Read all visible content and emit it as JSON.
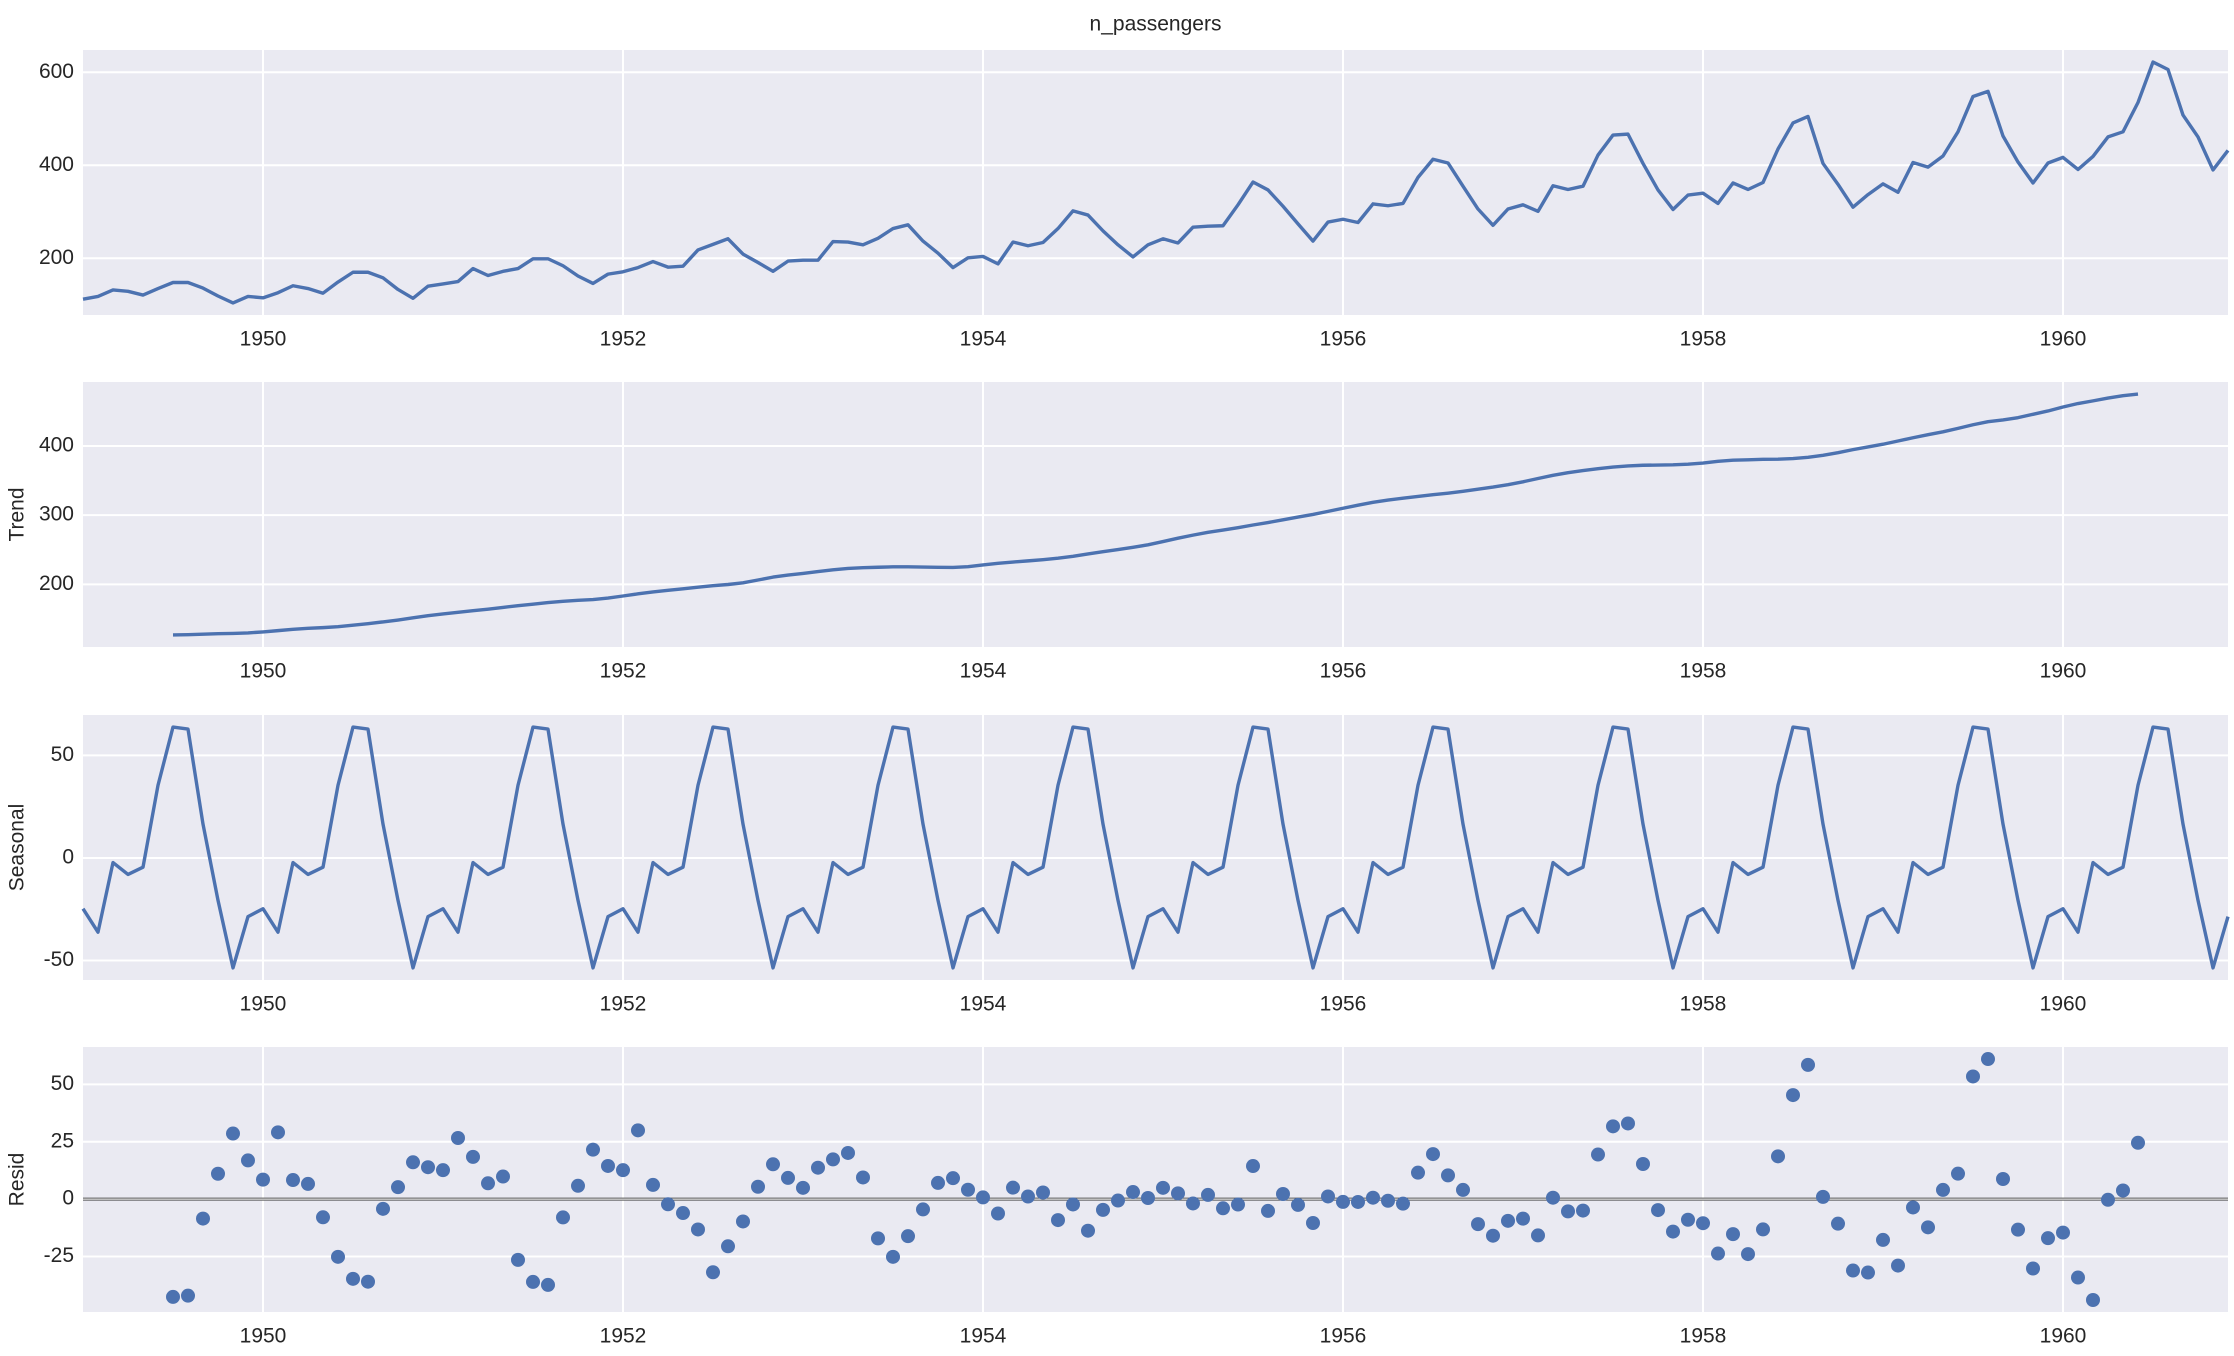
{
  "chart_data": {
    "type": "decomposition",
    "x": [
      "1949-01",
      "1949-02",
      "1949-03",
      "1949-04",
      "1949-05",
      "1949-06",
      "1949-07",
      "1949-08",
      "1949-09",
      "1949-10",
      "1949-11",
      "1949-12",
      "1950-01",
      "1950-02",
      "1950-03",
      "1950-04",
      "1950-05",
      "1950-06",
      "1950-07",
      "1950-08",
      "1950-09",
      "1950-10",
      "1950-11",
      "1950-12",
      "1951-01",
      "1951-02",
      "1951-03",
      "1951-04",
      "1951-05",
      "1951-06",
      "1951-07",
      "1951-08",
      "1951-09",
      "1951-10",
      "1951-11",
      "1951-12",
      "1952-01",
      "1952-02",
      "1952-03",
      "1952-04",
      "1952-05",
      "1952-06",
      "1952-07",
      "1952-08",
      "1952-09",
      "1952-10",
      "1952-11",
      "1952-12",
      "1953-01",
      "1953-02",
      "1953-03",
      "1953-04",
      "1953-05",
      "1953-06",
      "1953-07",
      "1953-08",
      "1953-09",
      "1953-10",
      "1953-11",
      "1953-12",
      "1954-01",
      "1954-02",
      "1954-03",
      "1954-04",
      "1954-05",
      "1954-06",
      "1954-07",
      "1954-08",
      "1954-09",
      "1954-10",
      "1954-11",
      "1954-12",
      "1955-01",
      "1955-02",
      "1955-03",
      "1955-04",
      "1955-05",
      "1955-06",
      "1955-07",
      "1955-08",
      "1955-09",
      "1955-10",
      "1955-11",
      "1955-12",
      "1956-01",
      "1956-02",
      "1956-03",
      "1956-04",
      "1956-05",
      "1956-06",
      "1956-07",
      "1956-08",
      "1956-09",
      "1956-10",
      "1956-11",
      "1956-12",
      "1957-01",
      "1957-02",
      "1957-03",
      "1957-04",
      "1957-05",
      "1957-06",
      "1957-07",
      "1957-08",
      "1957-09",
      "1957-10",
      "1957-11",
      "1957-12",
      "1958-01",
      "1958-02",
      "1958-03",
      "1958-04",
      "1958-05",
      "1958-06",
      "1958-07",
      "1958-08",
      "1958-09",
      "1958-10",
      "1958-11",
      "1958-12",
      "1959-01",
      "1959-02",
      "1959-03",
      "1959-04",
      "1959-05",
      "1959-06",
      "1959-07",
      "1959-08",
      "1959-09",
      "1959-10",
      "1959-11",
      "1959-12",
      "1960-01",
      "1960-02",
      "1960-03",
      "1960-04",
      "1960-05",
      "1960-06",
      "1960-07",
      "1960-08",
      "1960-09",
      "1960-10",
      "1960-11",
      "1960-12"
    ],
    "xlim": [
      "1949-01",
      "1960-12"
    ],
    "xticks": [
      1950,
      1952,
      1954,
      1956,
      1958,
      1960
    ],
    "grid": true,
    "panels": [
      {
        "type": "line",
        "title": "n_passengers",
        "color": "#4c72b0",
        "ylim": [
          78.1,
          647.9
        ],
        "yticks": [
          200,
          400,
          600
        ],
        "values": [
          112,
          118,
          132,
          129,
          121,
          135,
          148,
          148,
          136,
          119,
          104,
          118,
          115,
          126,
          141,
          135,
          125,
          149,
          170,
          170,
          158,
          133,
          114,
          140,
          145,
          150,
          178,
          163,
          172,
          178,
          199,
          199,
          184,
          162,
          146,
          166,
          171,
          180,
          193,
          181,
          183,
          218,
          230,
          242,
          209,
          191,
          172,
          194,
          196,
          196,
          236,
          235,
          229,
          243,
          264,
          272,
          237,
          211,
          180,
          201,
          204,
          188,
          235,
          227,
          234,
          264,
          302,
          293,
          259,
          229,
          203,
          229,
          242,
          233,
          267,
          269,
          270,
          315,
          364,
          347,
          312,
          274,
          237,
          278,
          284,
          277,
          317,
          313,
          318,
          374,
          413,
          405,
          355,
          306,
          271,
          306,
          315,
          301,
          356,
          348,
          355,
          422,
          465,
          467,
          404,
          347,
          305,
          336,
          340,
          318,
          362,
          348,
          363,
          435,
          491,
          505,
          404,
          359,
          310,
          337,
          360,
          342,
          406,
          396,
          420,
          472,
          548,
          559,
          463,
          407,
          362,
          405,
          417,
          391,
          419,
          461,
          472,
          535,
          622,
          606,
          508,
          461,
          390,
          432
        ]
      },
      {
        "type": "line",
        "ylabel": "Trend",
        "color": "#4c72b0",
        "ylim": [
          109.4,
          492.5
        ],
        "yticks": [
          200,
          300,
          400
        ],
        "values": [
          null,
          null,
          null,
          null,
          null,
          null,
          126.79,
          127.25,
          127.96,
          128.58,
          129.0,
          129.75,
          131.25,
          133.08,
          134.92,
          136.42,
          137.42,
          138.75,
          140.92,
          143.17,
          145.71,
          148.42,
          151.54,
          154.71,
          157.13,
          159.54,
          161.83,
          164.13,
          166.67,
          169.08,
          171.25,
          173.58,
          175.46,
          176.83,
          178.04,
          180.17,
          183.13,
          186.21,
          189.04,
          191.29,
          193.58,
          195.83,
          198.04,
          199.75,
          202.21,
          206.25,
          210.42,
          213.38,
          215.83,
          218.5,
          220.92,
          222.92,
          224.08,
          224.71,
          225.33,
          225.33,
          224.96,
          224.58,
          224.46,
          225.54,
          228.0,
          230.46,
          232.25,
          233.92,
          235.63,
          237.75,
          240.5,
          243.96,
          247.17,
          250.25,
          253.5,
          257.13,
          261.83,
          266.67,
          271.13,
          275.21,
          278.5,
          281.96,
          285.75,
          289.33,
          293.25,
          297.17,
          301.0,
          305.46,
          309.96,
          314.42,
          318.63,
          321.75,
          324.5,
          327.08,
          329.54,
          331.83,
          334.46,
          337.54,
          340.54,
          344.08,
          348.25,
          353.0,
          357.63,
          361.38,
          364.5,
          367.17,
          369.46,
          371.21,
          372.17,
          372.42,
          372.75,
          373.63,
          375.25,
          377.92,
          379.5,
          380.0,
          380.71,
          380.96,
          381.83,
          383.67,
          386.5,
          390.33,
          394.71,
          398.63,
          402.54,
          407.17,
          411.88,
          416.33,
          420.5,
          425.5,
          430.71,
          435.13,
          437.71,
          440.96,
          445.83,
          450.63,
          456.33,
          461.38,
          465.21,
          469.33,
          472.75,
          475.04,
          null,
          null,
          null,
          null,
          null,
          null
        ]
      },
      {
        "type": "line",
        "ylabel": "Seasonal",
        "color": "#4c72b0",
        "ylim": [
          -59.5,
          69.7
        ],
        "yticks": [
          -50,
          0,
          50
        ],
        "values": [
          -24.75,
          -36.19,
          -2.24,
          -8.04,
          -4.51,
          35.4,
          63.83,
          62.82,
          16.52,
          -20.64,
          -53.59,
          -28.62,
          -24.75,
          -36.19,
          -2.24,
          -8.04,
          -4.51,
          35.4,
          63.83,
          62.82,
          16.52,
          -20.64,
          -53.59,
          -28.62,
          -24.75,
          -36.19,
          -2.24,
          -8.04,
          -4.51,
          35.4,
          63.83,
          62.82,
          16.52,
          -20.64,
          -53.59,
          -28.62,
          -24.75,
          -36.19,
          -2.24,
          -8.04,
          -4.51,
          35.4,
          63.83,
          62.82,
          16.52,
          -20.64,
          -53.59,
          -28.62,
          -24.75,
          -36.19,
          -2.24,
          -8.04,
          -4.51,
          35.4,
          63.83,
          62.82,
          16.52,
          -20.64,
          -53.59,
          -28.62,
          -24.75,
          -36.19,
          -2.24,
          -8.04,
          -4.51,
          35.4,
          63.83,
          62.82,
          16.52,
          -20.64,
          -53.59,
          -28.62,
          -24.75,
          -36.19,
          -2.24,
          -8.04,
          -4.51,
          35.4,
          63.83,
          62.82,
          16.52,
          -20.64,
          -53.59,
          -28.62,
          -24.75,
          -36.19,
          -2.24,
          -8.04,
          -4.51,
          35.4,
          63.83,
          62.82,
          16.52,
          -20.64,
          -53.59,
          -28.62,
          -24.75,
          -36.19,
          -2.24,
          -8.04,
          -4.51,
          35.4,
          63.83,
          62.82,
          16.52,
          -20.64,
          -53.59,
          -28.62,
          -24.75,
          -36.19,
          -2.24,
          -8.04,
          -4.51,
          35.4,
          63.83,
          62.82,
          16.52,
          -20.64,
          -53.59,
          -28.62,
          -24.75,
          -36.19,
          -2.24,
          -8.04,
          -4.51,
          35.4,
          63.83,
          62.82,
          16.52,
          -20.64,
          -53.59,
          -28.62,
          -24.75,
          -36.19,
          -2.24,
          -8.04,
          -4.51,
          35.4,
          63.83,
          62.82,
          16.52,
          -20.64,
          -53.59,
          -28.62
        ]
      },
      {
        "type": "scatter",
        "ylabel": "Resid",
        "color": "#4c72b0",
        "ylim": [
          -49.2,
          66.3
        ],
        "yticks": [
          -25,
          0,
          25,
          50
        ],
        "hline": 0,
        "values": [
          null,
          null,
          null,
          null,
          null,
          null,
          -42.62,
          -42.07,
          -8.48,
          11.06,
          28.59,
          16.87,
          8.5,
          29.11,
          8.32,
          6.62,
          -7.91,
          -25.15,
          -34.75,
          -35.99,
          -4.23,
          5.22,
          16.05,
          13.91,
          12.62,
          26.65,
          18.41,
          6.91,
          9.84,
          -26.48,
          -36.08,
          -37.4,
          -7.98,
          5.81,
          21.55,
          14.45,
          12.62,
          29.98,
          6.2,
          -2.25,
          -6.07,
          -13.23,
          -31.87,
          -20.57,
          -9.73,
          5.39,
          15.17,
          9.24,
          4.92,
          13.69,
          17.32,
          20.12,
          9.43,
          -17.11,
          -25.16,
          -16.15,
          -4.48,
          7.06,
          9.13,
          4.08,
          0.75,
          -6.27,
          4.99,
          1.12,
          2.88,
          -9.15,
          -2.33,
          -13.78,
          -4.69,
          -0.61,
          3.09,
          0.49,
          4.92,
          2.52,
          -1.89,
          1.83,
          -3.99,
          -2.36,
          14.42,
          -5.15,
          2.23,
          -2.53,
          -10.41,
          1.16,
          -1.21,
          -1.23,
          0.61,
          -0.71,
          -1.99,
          11.52,
          19.63,
          10.35,
          4.02,
          -10.9,
          -15.95,
          -9.46,
          -8.5,
          -15.81,
          0.61,
          -5.34,
          -4.99,
          19.43,
          31.71,
          32.97,
          15.31,
          -4.78,
          -14.16,
          -8.99,
          -10.5,
          -23.73,
          -15.26,
          -23.96,
          -13.2,
          18.64,
          45.34,
          58.51,
          0.98,
          -10.69,
          -31.12,
          -32.01,
          -17.79,
          -28.98,
          -3.64,
          -12.29,
          4.01,
          11.1,
          53.46,
          61.05,
          8.77,
          -13.32,
          -30.24,
          -17.01,
          -14.58,
          -34.19,
          -43.97,
          -0.29,
          3.76,
          24.56,
          null,
          null,
          null,
          null,
          null,
          null
        ]
      }
    ]
  }
}
